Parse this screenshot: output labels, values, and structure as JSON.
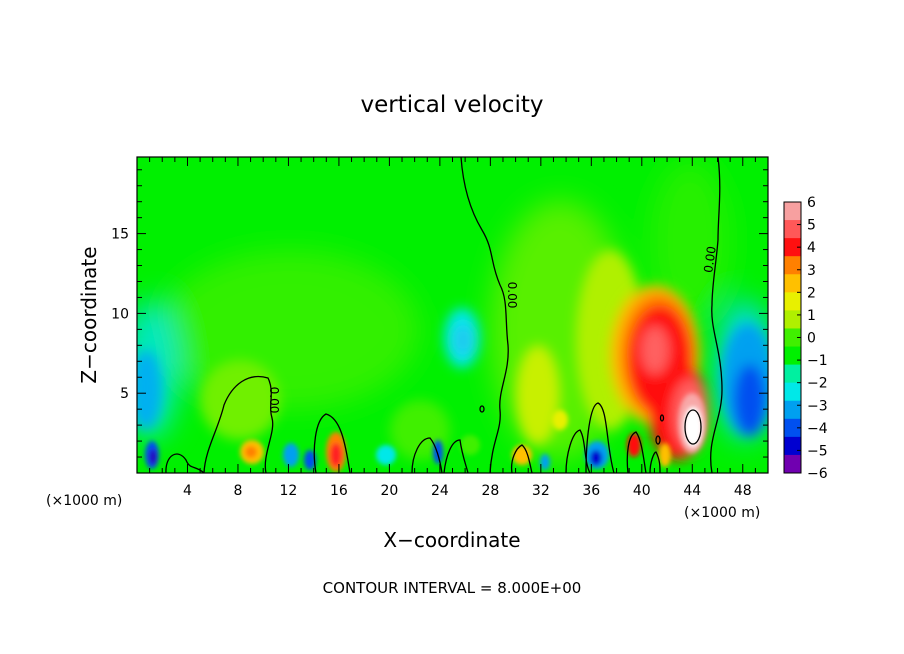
{
  "chart_data": {
    "type": "heatmap",
    "title": "vertical velocity",
    "xlabel": "X−coordinate",
    "ylabel": "Z−coordinate",
    "x_unit_left": "(×1000 m)",
    "x_unit_right": "(×1000 m)",
    "footer": "CONTOUR INTERVAL = 8.000E+00",
    "contour_label": "0.00",
    "xlim": [
      0,
      50
    ],
    "ylim": [
      0,
      19.8
    ],
    "x_ticks": [
      4,
      8,
      12,
      16,
      20,
      24,
      28,
      32,
      36,
      40,
      44,
      48
    ],
    "y_ticks": [
      5,
      10,
      15
    ],
    "colorbar": {
      "levels": [
        6,
        5,
        4,
        3,
        2,
        1,
        0,
        -1,
        -2,
        -3,
        -4,
        -5,
        -6
      ],
      "tick_labels": [
        "6",
        "5",
        "4",
        "3",
        "2",
        "1",
        "0",
        "−1",
        "−2",
        "−3",
        "−4",
        "−5",
        "−6"
      ],
      "colors": [
        "#f7a0a0",
        "#ff5858",
        "#ff1010",
        "#ff8000",
        "#ffc000",
        "#e8f000",
        "#b0f000",
        "#40f000",
        "#00f000",
        "#00f0a0",
        "#00e8e8",
        "#00a0f0",
        "#0050f0",
        "#0000d0",
        "#7000b0"
      ]
    },
    "features": [
      {
        "kind": "updraft",
        "x": 42.5,
        "z": 7.0,
        "w": 5.5
      },
      {
        "kind": "updraft_core",
        "x": 44.3,
        "z": 3.0,
        "w": 6.0
      },
      {
        "kind": "downdraft",
        "x": 48.0,
        "z": 6.0,
        "w": -3.5
      },
      {
        "kind": "downdraft",
        "x": 26.0,
        "z": 8.5,
        "w": -2.0
      },
      {
        "kind": "downdraft",
        "x": 1.0,
        "z": 5.5,
        "w": -2.5
      },
      {
        "kind": "downdraft",
        "x": 36.8,
        "z": 1.2,
        "w": -5.0
      },
      {
        "kind": "downdraft",
        "x": 1.2,
        "z": 1.0,
        "w": -4.5
      },
      {
        "kind": "updraft",
        "x": 16.0,
        "z": 1.2,
        "w": 3.0
      },
      {
        "kind": "updraft",
        "x": 9.0,
        "z": 1.5,
        "w": 2.0
      }
    ]
  }
}
